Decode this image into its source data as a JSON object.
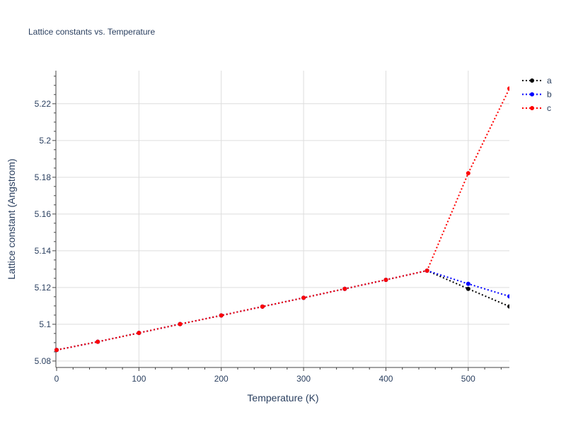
{
  "chart_data": {
    "type": "line",
    "title": "Lattice constants vs. Temperature",
    "xlabel": "Temperature (K)",
    "ylabel": "Lattice constant (Angstrom)",
    "xlim": [
      0,
      550
    ],
    "ylim": [
      5.0765,
      5.238
    ],
    "x_ticks": [
      0,
      100,
      200,
      300,
      400,
      500
    ],
    "y_ticks": [
      5.08,
      5.1,
      5.12,
      5.14,
      5.16,
      5.18,
      5.2,
      5.22
    ],
    "y_tick_labels": [
      "5.08",
      "5.1",
      "5.12",
      "5.14",
      "5.16",
      "5.18",
      "5.2",
      "5.22"
    ],
    "grid": true,
    "legend_position": "top-right",
    "x": [
      0,
      50,
      100,
      150,
      200,
      250,
      300,
      350,
      400,
      450,
      500,
      550
    ],
    "series": [
      {
        "name": "a",
        "color": "#000000",
        "values": [
          5.086,
          5.0905,
          5.0953,
          5.1001,
          5.1048,
          5.1096,
          5.1144,
          5.1193,
          5.1242,
          5.1292,
          5.1193,
          5.1097
        ]
      },
      {
        "name": "b",
        "color": "#0000ff",
        "values": [
          5.086,
          5.0905,
          5.0953,
          5.1001,
          5.1048,
          5.1096,
          5.1144,
          5.1193,
          5.1242,
          5.1292,
          5.122,
          5.1152
        ]
      },
      {
        "name": "c",
        "color": "#ff0000",
        "values": [
          5.086,
          5.0905,
          5.0953,
          5.1001,
          5.1048,
          5.1096,
          5.1144,
          5.1193,
          5.1242,
          5.1292,
          5.1822,
          5.2283
        ]
      }
    ]
  }
}
